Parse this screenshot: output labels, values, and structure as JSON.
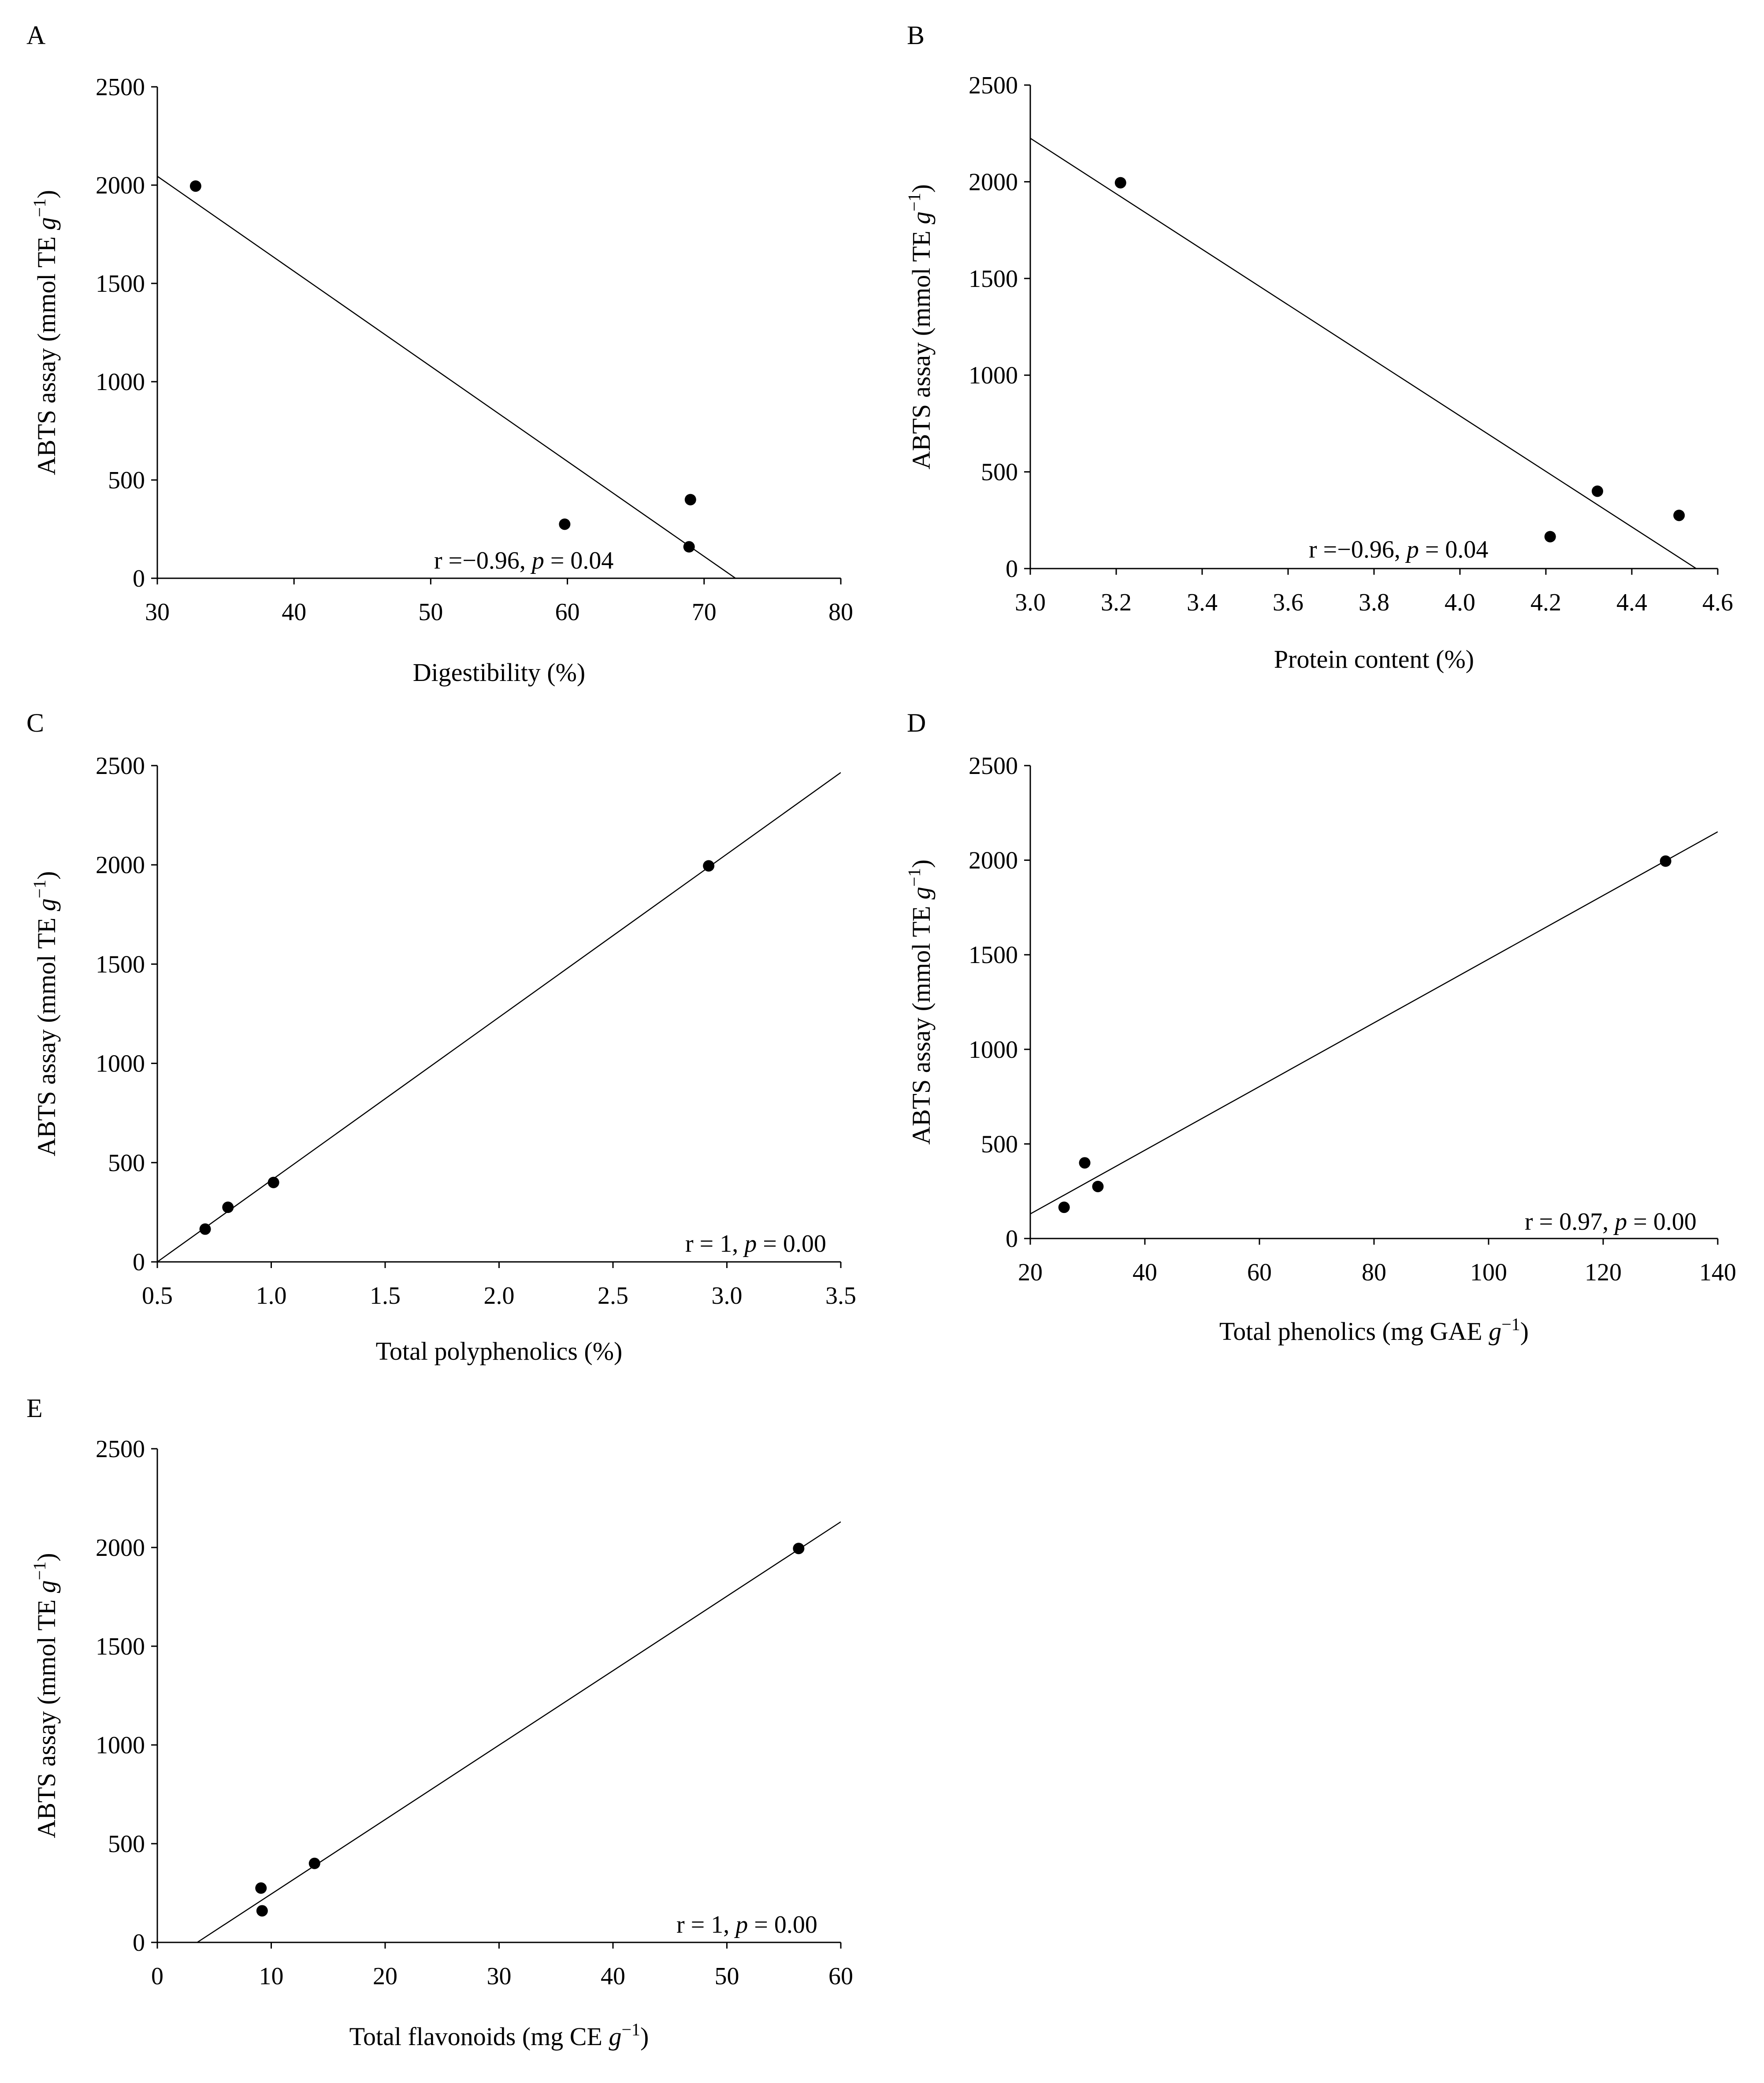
{
  "figure": {
    "chart_data": [
      {
        "panel": "A",
        "type": "scatter",
        "xlabel": "Digestibility (%)",
        "ylabel_parts": {
          "base": "ABTS assay (mmol TE ",
          "unit": "g",
          "sup": "−1",
          "close": ")"
        },
        "xlim": [
          30,
          80
        ],
        "ylim": [
          0,
          2500
        ],
        "xticks": [
          "30",
          "40",
          "50",
          "60",
          "70",
          "80"
        ],
        "yticks": [
          "0",
          "500",
          "1000",
          "1500",
          "2000",
          "2500"
        ],
        "points": [
          {
            "x": 32.8,
            "y": 1995
          },
          {
            "x": 59.8,
            "y": 275
          },
          {
            "x": 69.0,
            "y": 400
          },
          {
            "x": 68.9,
            "y": 160
          }
        ],
        "trendline": [
          [
            30,
            2045
          ],
          [
            72.3,
            0
          ]
        ],
        "annotation": {
          "r_text": "r =−0.96, ",
          "p": "p",
          "rest": " = 0.04"
        }
      },
      {
        "panel": "B",
        "type": "scatter",
        "xlabel": "Protein content (%)",
        "ylabel_parts": {
          "base": "ABTS assay (mmol TE ",
          "unit": "g",
          "sup": "−1",
          "close": ")"
        },
        "xlim": [
          3.0,
          4.6
        ],
        "ylim": [
          0,
          2500
        ],
        "xticks": [
          "3.0",
          "3.2",
          "3.4",
          "3.6",
          "3.8",
          "4.0",
          "4.2",
          "4.4",
          "4.6"
        ],
        "yticks": [
          "0",
          "500",
          "1000",
          "1500",
          "2000",
          "2500"
        ],
        "points": [
          {
            "x": 3.21,
            "y": 1995
          },
          {
            "x": 4.21,
            "y": 165
          },
          {
            "x": 4.32,
            "y": 400
          },
          {
            "x": 4.51,
            "y": 275
          }
        ],
        "trendline": [
          [
            3.0,
            2225
          ],
          [
            4.55,
            0
          ]
        ],
        "annotation": {
          "r_text": "r =−0.96, ",
          "p": "p",
          "rest": " = 0.04"
        }
      },
      {
        "panel": "C",
        "type": "scatter",
        "xlabel": "Total polyphenolics (%)",
        "ylabel_parts": {
          "base": "ABTS assay (mmol TE ",
          "unit": "g",
          "sup": "−1",
          "close": ")"
        },
        "xlim": [
          0.5,
          3.5
        ],
        "ylim": [
          0,
          2500
        ],
        "xticks": [
          "0.5",
          "1.0",
          "1.5",
          "2.0",
          "2.5",
          "3.0",
          "3.5"
        ],
        "yticks": [
          "0",
          "500",
          "1000",
          "1500",
          "2000",
          "2500"
        ],
        "points": [
          {
            "x": 0.71,
            "y": 165
          },
          {
            "x": 0.81,
            "y": 275
          },
          {
            "x": 1.01,
            "y": 400
          },
          {
            "x": 2.92,
            "y": 1995
          }
        ],
        "trendline": [
          [
            0.5,
            0
          ],
          [
            3.5,
            2465
          ]
        ],
        "annotation": {
          "r_text": "r = 1, ",
          "p": "p",
          "rest": " = 0.00"
        }
      },
      {
        "panel": "D",
        "type": "scatter",
        "xlabel_parts": {
          "base": "Total phenolics  (mg GAE ",
          "unit": "g",
          "sup": "−1",
          "close": ")"
        },
        "ylabel_parts": {
          "base": "ABTS assay (mmol TE ",
          "unit": "g",
          "sup": "−1",
          "close": ")"
        },
        "xlim": [
          20,
          140
        ],
        "ylim": [
          0,
          2500
        ],
        "xticks": [
          "20",
          "40",
          "60",
          "80",
          "100",
          "120",
          "140"
        ],
        "yticks": [
          "0",
          "500",
          "1000",
          "1500",
          "2000",
          "2500"
        ],
        "points": [
          {
            "x": 25.9,
            "y": 165
          },
          {
            "x": 29.5,
            "y": 400
          },
          {
            "x": 31.8,
            "y": 275
          },
          {
            "x": 130.9,
            "y": 1995
          }
        ],
        "trendline": [
          [
            20,
            130
          ],
          [
            140,
            2150
          ]
        ],
        "annotation": {
          "r_text": "r = 0.97, ",
          "p": "p",
          "rest": " = 0.00"
        }
      },
      {
        "panel": "E",
        "type": "scatter",
        "xlabel_parts": {
          "base": "Total flavonoids (mg CE ",
          "unit": "g",
          "sup": "−1",
          "close": ")"
        },
        "ylabel_parts": {
          "base": "ABTS assay (mmol TE ",
          "unit": "g",
          "sup": "−1",
          "close": ")"
        },
        "xlim": [
          0,
          60
        ],
        "ylim": [
          0,
          2500
        ],
        "xticks": [
          "0",
          "10",
          "20",
          "30",
          "40",
          "50",
          "60"
        ],
        "yticks": [
          "0",
          "500",
          "1000",
          "1500",
          "2000",
          "2500"
        ],
        "points": [
          {
            "x": 9.1,
            "y": 275
          },
          {
            "x": 9.2,
            "y": 160
          },
          {
            "x": 13.8,
            "y": 400
          },
          {
            "x": 56.3,
            "y": 1995
          }
        ],
        "trendline": [
          [
            3.5,
            0
          ],
          [
            60,
            2130
          ]
        ],
        "annotation": {
          "r_text": "r = 1, ",
          "p": "p",
          "rest": " = 0.00"
        }
      }
    ]
  }
}
